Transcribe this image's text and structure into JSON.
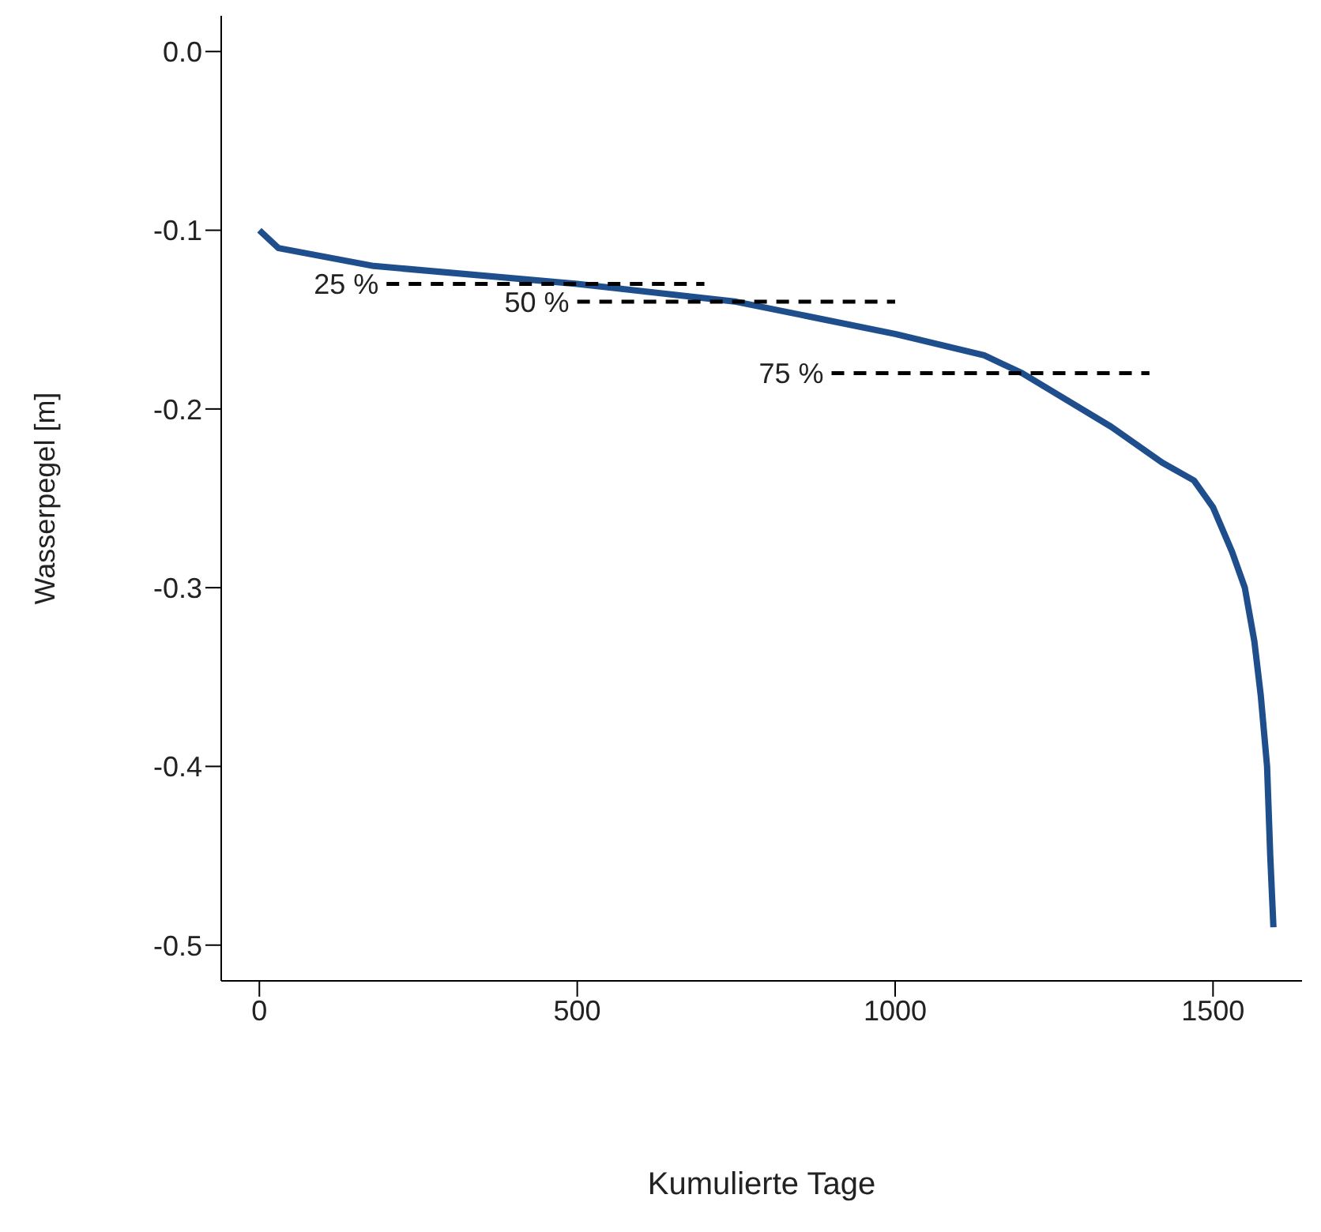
{
  "chart_data": {
    "type": "line",
    "xlabel": "Kumulierte Tage",
    "ylabel": "Wasserpegel [m]",
    "xlim": [
      -60,
      1640
    ],
    "xticks": [
      0,
      500,
      1000,
      1500
    ],
    "ylim": [
      -0.52,
      0.02
    ],
    "yticks": [
      {
        "value": 0,
        "label": "0.0"
      },
      {
        "value": -0.1,
        "label": "-0.1"
      },
      {
        "value": -0.2,
        "label": "-0.2"
      },
      {
        "value": -0.3,
        "label": "-0.3"
      },
      {
        "value": -0.4,
        "label": "-0.4"
      },
      {
        "value": -0.5,
        "label": "-0.5"
      }
    ],
    "grid": false,
    "marker": "none",
    "series": [
      {
        "color": "#1f4e8c",
        "line_style": "solid",
        "x": [
          0,
          30,
          180,
          500,
          750,
          1000,
          1140,
          1200,
          1340,
          1420,
          1470,
          1500,
          1530,
          1550,
          1565,
          1575,
          1585,
          1590,
          1595
        ],
        "values": [
          -0.1,
          -0.11,
          -0.12,
          -0.13,
          -0.14,
          -0.158,
          -0.17,
          -0.18,
          -0.21,
          -0.23,
          -0.24,
          -0.255,
          -0.28,
          -0.3,
          -0.33,
          -0.36,
          -0.4,
          -0.45,
          -0.49
        ]
      },
      {
        "color": "#000000",
        "line_style": "dashed",
        "x": [
          200,
          700
        ],
        "values": [
          -0.13,
          -0.13
        ]
      },
      {
        "color": "#000000",
        "line_style": "dashed",
        "x": [
          500,
          1000
        ],
        "values": [
          -0.14,
          -0.14
        ]
      },
      {
        "color": "#000000",
        "line_style": "dashed",
        "x": [
          900,
          1400
        ],
        "values": [
          -0.18,
          -0.18
        ]
      }
    ],
    "annotations": [
      {
        "text": "25 %",
        "x": 200,
        "y": -0.13
      },
      {
        "text": "50 %",
        "x": 500,
        "y": -0.14
      },
      {
        "text": "75 %",
        "x": 900,
        "y": -0.18
      }
    ]
  }
}
